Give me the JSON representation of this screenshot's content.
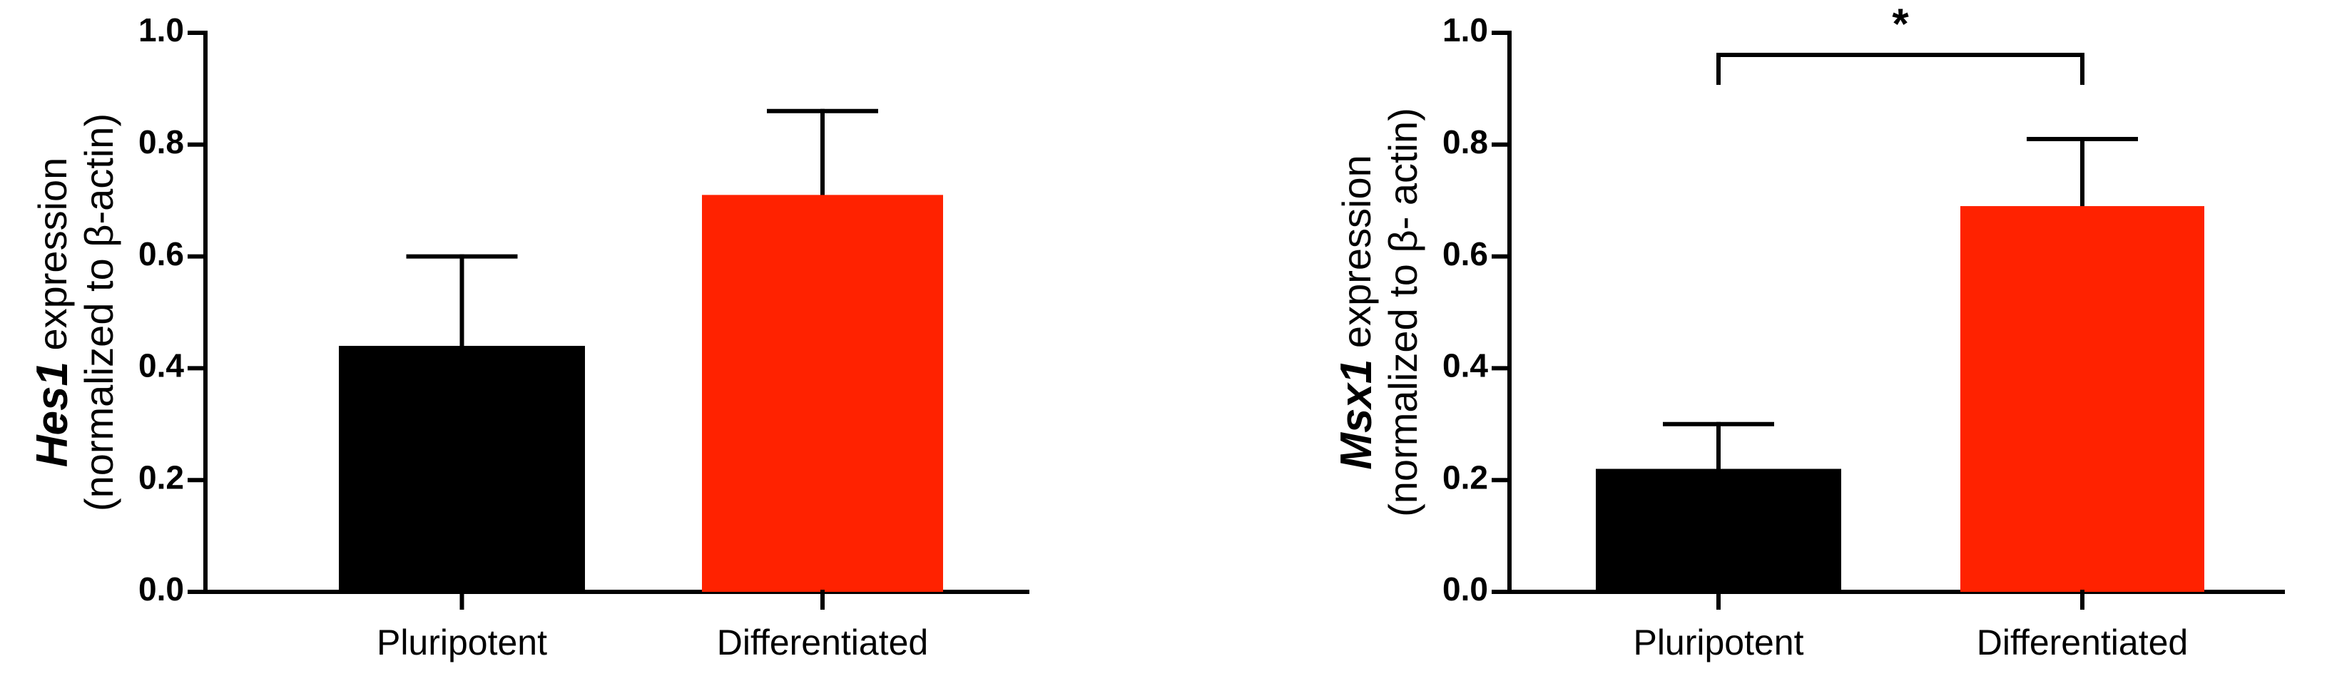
{
  "chart_data": [
    {
      "type": "bar",
      "ylabel_gene": "Hes1",
      "ylabel_text": "expression",
      "ylabel_line2": "(normalized to β-actin)",
      "categories": [
        "Pluripotent",
        "Differentiated"
      ],
      "values": [
        0.44,
        0.71
      ],
      "errors": [
        0.16,
        0.15
      ],
      "colors": [
        "#000000",
        "#ff2200"
      ],
      "ylim": [
        0,
        1
      ],
      "yticks": [
        {
          "value": 0,
          "label": "0.0"
        },
        {
          "value": 0.2,
          "label": "0.2"
        },
        {
          "value": 0.4,
          "label": "0.4"
        },
        {
          "value": 0.6,
          "label": "0.6"
        },
        {
          "value": 0.8,
          "label": "0.8"
        },
        {
          "value": 1,
          "label": "1.0"
        }
      ]
    },
    {
      "type": "bar",
      "ylabel_gene": "Msx1",
      "ylabel_text": "expression",
      "ylabel_line2": "(normalized to β- actin)",
      "categories": [
        "Pluripotent",
        "Differentiated"
      ],
      "values": [
        0.22,
        0.69
      ],
      "errors": [
        0.08,
        0.12
      ],
      "colors": [
        "#000000",
        "#ff2200"
      ],
      "ylim": [
        0,
        1
      ],
      "yticks": [
        {
          "value": 0,
          "label": "0.0"
        },
        {
          "value": 0.2,
          "label": "0.2"
        },
        {
          "value": 0.4,
          "label": "0.4"
        },
        {
          "value": 0.6,
          "label": "0.6"
        },
        {
          "value": 0.8,
          "label": "0.8"
        },
        {
          "value": 1,
          "label": "1.0"
        }
      ],
      "annotations": [
        {
          "text": "*"
        }
      ]
    }
  ]
}
